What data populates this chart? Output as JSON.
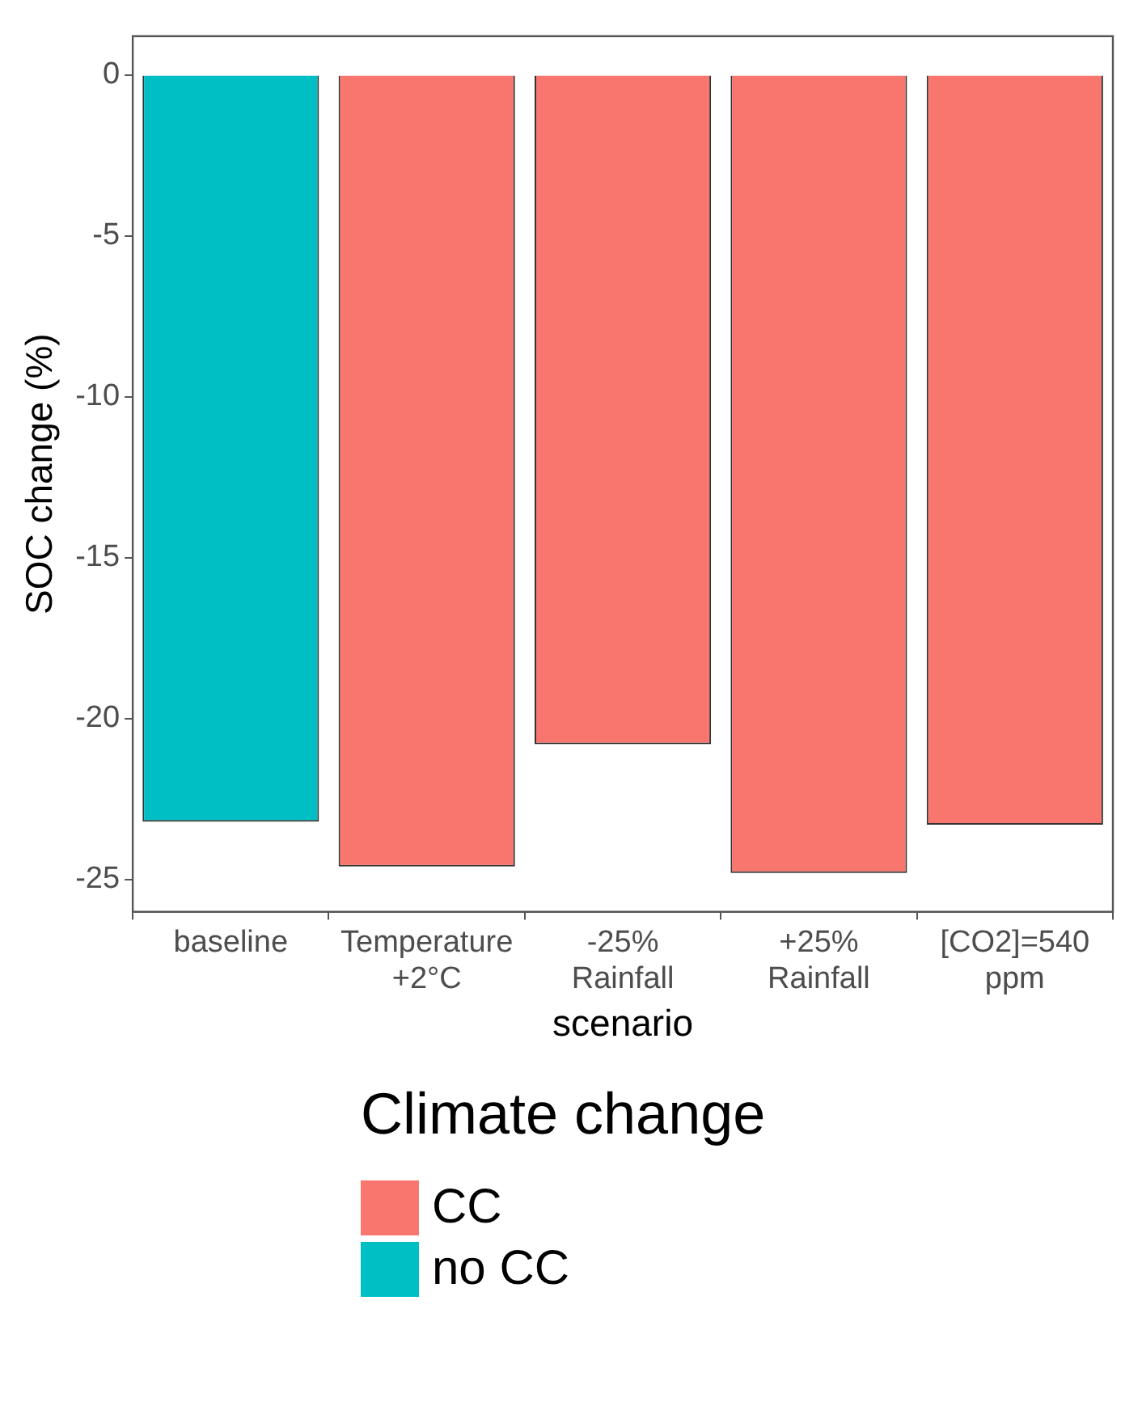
{
  "chart_data": {
    "type": "bar",
    "xlabel": "scenario",
    "ylabel": "SOC change (%)",
    "legend_title": "Climate change",
    "legend": "bottom",
    "grid": false,
    "categories": [
      "baseline",
      "Temperature +2°C",
      "-25% Rainfall",
      "+25% Rainfall",
      "[CO2]=540 ppm"
    ],
    "series": [
      {
        "name": "CC",
        "color": "#f8766d",
        "values": [
          null,
          -24.6,
          -20.8,
          -24.8,
          -23.3
        ]
      },
      {
        "name": "no CC",
        "color": "#00bfc4",
        "values": [
          -23.2,
          null,
          null,
          null,
          null
        ]
      }
    ],
    "ylim": [
      -26,
      1.2
    ],
    "yticks": [
      0,
      -5,
      -10,
      -15,
      -20,
      -25
    ]
  }
}
